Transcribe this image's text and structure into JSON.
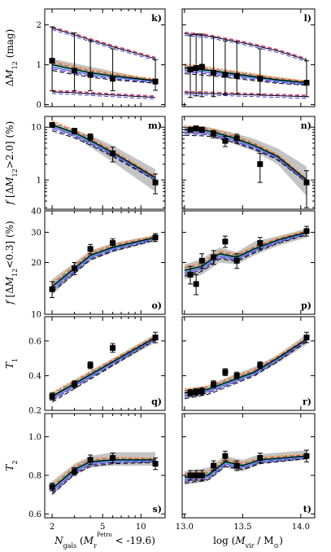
{
  "figure": {
    "xlabel_left_parts": [
      "N",
      "gals",
      " (",
      "M",
      "r",
      "Petro",
      " < -19.6)"
    ],
    "xlabel_right_parts": [
      "log (",
      "M",
      "vir",
      " / M",
      "⊙",
      ")"
    ],
    "x_left": {
      "scale": "log",
      "lim": [
        1.75,
        15.5
      ],
      "ticks": [
        2,
        5,
        10
      ],
      "tick_labels": [
        "2",
        "5",
        "10"
      ],
      "minor": [
        3,
        4,
        6,
        7,
        8,
        9
      ]
    },
    "x_right": {
      "scale": "linear",
      "lim": [
        12.98,
        14.12
      ],
      "ticks": [
        13.0,
        13.5,
        14.0
      ],
      "tick_labels": [
        "13.0",
        "13.5",
        "14.0"
      ]
    },
    "colors": {
      "data": "#000000",
      "band": "#c4c4c4",
      "blue": "#2a2ae0",
      "purple": "#9933cc",
      "red": "#e03a2a",
      "orange": "#f08a1a",
      "cyan": "#1fb8e0",
      "green": "#1ca36a"
    }
  },
  "chart_data": [
    {
      "row": "k-l",
      "type": "line",
      "ylabel_parts": [
        "Δ",
        "M",
        "12",
        " (mag)"
      ],
      "yscale": "linear",
      "ylim": [
        -0.05,
        2.4
      ],
      "yticks": [
        0,
        1,
        2
      ],
      "ytick_labels": [
        "0",
        "1",
        "2"
      ],
      "panels": [
        {
          "label": "k)",
          "side": "left",
          "points": {
            "x": [
              2,
              3,
              4,
              6,
              13
            ],
            "y": [
              1.1,
              0.85,
              0.75,
              0.65,
              0.58
            ],
            "yerr": [
              [
                0.75,
                0.5,
                0.4,
                0.3,
                0.22
              ],
              [
                0.85,
                0.95,
                0.85,
                0.75,
                0.55
              ]
            ]
          },
          "band": {
            "x": [
              2,
              13
            ],
            "lo": [
              1.0,
              0.55
            ],
            "hi": [
              1.15,
              0.62
            ]
          },
          "model": {
            "x": [
              2,
              3,
              4,
              6,
              13
            ],
            "y": [
              1.0,
              0.88,
              0.8,
              0.72,
              0.6
            ]
          },
          "scatter_lo": {
            "x": [
              2,
              3,
              4,
              6,
              13
            ],
            "y": [
              0.32,
              0.3,
              0.27,
              0.24,
              0.18
            ]
          },
          "scatter_hi": {
            "x": [
              2,
              3,
              4,
              6,
              13
            ],
            "y": [
              1.92,
              1.75,
              1.62,
              1.45,
              1.15
            ]
          }
        },
        {
          "label": "l)",
          "side": "right",
          "points": {
            "x": [
              13.05,
              13.1,
              13.15,
              13.25,
              13.35,
              13.45,
              13.65,
              14.05
            ],
            "y": [
              0.88,
              0.92,
              0.95,
              0.8,
              0.75,
              0.72,
              0.65,
              0.55
            ],
            "yerr": [
              [
                0.7,
                0.7,
                0.75,
                0.6,
                0.5,
                0.45,
                0.4,
                0.35
              ],
              [
                0.85,
                0.85,
                0.82,
                0.9,
                0.85,
                0.85,
                0.75,
                0.55
              ]
            ]
          },
          "band": {
            "x": [
              13.0,
              14.05
            ],
            "lo": [
              0.85,
              0.55
            ],
            "hi": [
              1.0,
              0.6
            ]
          },
          "model": {
            "x": [
              13.0,
              13.2,
              13.4,
              13.6,
              13.8,
              14.05
            ],
            "y": [
              0.92,
              0.86,
              0.78,
              0.7,
              0.62,
              0.55
            ]
          },
          "scatter_lo": {
            "x": [
              13.0,
              14.05
            ],
            "y": [
              0.3,
              0.2
            ]
          },
          "scatter_hi": {
            "x": [
              13.0,
              13.2,
              13.5,
              13.8,
              14.05
            ],
            "y": [
              1.78,
              1.72,
              1.55,
              1.35,
              1.12
            ]
          }
        }
      ]
    },
    {
      "row": "m-n",
      "type": "line",
      "ylabel_parts": [
        "f",
        " [Δ",
        "M",
        "12",
        ">2.0]  (%)"
      ],
      "yscale": "log",
      "ylim": [
        0.28,
        16
      ],
      "yticks": [
        1,
        10
      ],
      "ytick_labels": [
        "1",
        "10"
      ],
      "panels": [
        {
          "label": "m)",
          "side": "left",
          "points": {
            "x": [
              2,
              3,
              4,
              6,
              13
            ],
            "y": [
              11,
              8.5,
              6.5,
              3.2,
              0.9
            ],
            "yerr": [
              [
                1.0,
                1.0,
                1.0,
                1.0,
                0.35
              ],
              [
                1.0,
                1.0,
                1.0,
                1.0,
                0.4
              ]
            ]
          },
          "band": {
            "x": [
              2,
              3,
              4,
              6,
              13
            ],
            "lo": [
              10,
              6.5,
              4.2,
              2.2,
              0.6
            ],
            "hi": [
              12.5,
              9,
              7,
              4.5,
              1.6
            ]
          },
          "model": {
            "x": [
              2,
              3,
              4,
              6,
              13
            ],
            "y": [
              11,
              7.8,
              5.6,
              3.3,
              1.1
            ]
          }
        },
        {
          "label": "n)",
          "side": "right",
          "points": {
            "x": [
              13.05,
              13.1,
              13.15,
              13.25,
              13.35,
              13.45,
              13.65,
              14.05
            ],
            "y": [
              9,
              9.5,
              9,
              7.5,
              5.5,
              6.2,
              2.0,
              0.9
            ],
            "yerr": [
              [
                1.0,
                1.0,
                1.0,
                1.2,
                1.2,
                1.2,
                1.1,
                0.6
              ],
              [
                1.0,
                1.0,
                1.0,
                1.2,
                1.2,
                1.2,
                1.2,
                0.6
              ]
            ]
          },
          "band": {
            "x": [
              13.0,
              13.2,
              13.4,
              13.6,
              13.8,
              14.05
            ],
            "lo": [
              7.5,
              7,
              5,
              3.5,
              2,
              0.5
            ],
            "hi": [
              10,
              10,
              8,
              6,
              4,
              1.8
            ]
          },
          "model": {
            "x": [
              13.0,
              13.2,
              13.4,
              13.6,
              13.8,
              14.05
            ],
            "y": [
              9,
              8.5,
              6.5,
              4.5,
              2.8,
              1.0
            ]
          }
        }
      ]
    },
    {
      "row": "o-p",
      "type": "line",
      "ylabel_parts": [
        "f",
        " [Δ",
        "M",
        "12",
        "<0.3]  (%)"
      ],
      "yscale": "log",
      "ylim": [
        10,
        40
      ],
      "yticks": [
        10,
        20,
        30,
        40
      ],
      "ytick_labels": [
        "10",
        "20",
        "30",
        "40"
      ],
      "panels": [
        {
          "label": "o)",
          "side": "left",
          "points": {
            "x": [
              2,
              3,
              4,
              6,
              13
            ],
            "y": [
              14,
              18.5,
              24,
              26,
              28
            ],
            "yerr": [
              [
                1.5,
                1.5,
                1.5,
                1.5,
                1.5
              ],
              [
                1.5,
                1.5,
                1.5,
                1.5,
                1.5
              ]
            ]
          },
          "band": {
            "x": [
              2,
              3,
              4,
              6,
              13
            ],
            "lo": [
              13,
              17,
              20.5,
              23,
              26.5
            ],
            "hi": [
              16,
              20,
              23.5,
              26,
              29
            ]
          },
          "model": {
            "x": [
              2,
              3,
              4,
              6,
              13
            ],
            "y": [
              14.5,
              18.5,
              22,
              24.5,
              28
            ]
          }
        },
        {
          "label": "p)",
          "side": "right",
          "points": {
            "x": [
              13.05,
              13.1,
              13.15,
              13.25,
              13.35,
              13.45,
              13.65,
              14.05
            ],
            "y": [
              17,
              15,
              20.5,
              21.5,
              26.5,
              20.5,
              26,
              30.5
            ],
            "yerr": [
              [
                2,
                2,
                2,
                2,
                2,
                2,
                2,
                2
              ],
              [
                2,
                2,
                2,
                2,
                2,
                2,
                2,
                2
              ]
            ]
          },
          "band": {
            "x": [
              13.0,
              13.15,
              13.3,
              13.45,
              13.6,
              13.8,
              14.05
            ],
            "lo": [
              16,
              17,
              20,
              19.5,
              22,
              25,
              28
            ],
            "hi": [
              19.5,
              21,
              24.5,
              23,
              26.5,
              28.5,
              31.5
            ]
          },
          "model": {
            "x": [
              13.0,
              13.15,
              13.3,
              13.45,
              13.6,
              13.8,
              14.05
            ],
            "y": [
              18,
              19,
              22.5,
              21.5,
              24,
              27,
              30
            ]
          }
        }
      ]
    },
    {
      "row": "q-r",
      "type": "line",
      "ylabel_parts": [
        "T",
        "1"
      ],
      "yscale": "linear",
      "ylim": [
        0.2,
        0.74
      ],
      "yticks": [
        0.2,
        0.4,
        0.6
      ],
      "ytick_labels": [
        "0.2",
        "0.4",
        "0.6"
      ],
      "panels": [
        {
          "label": "q)",
          "side": "left",
          "points": {
            "x": [
              2,
              3,
              4,
              6,
              13
            ],
            "y": [
              0.28,
              0.35,
              0.46,
              0.56,
              0.62
            ],
            "yerr": [
              [
                0.02,
                0.02,
                0.02,
                0.025,
                0.03
              ],
              [
                0.02,
                0.02,
                0.02,
                0.025,
                0.03
              ]
            ]
          },
          "band": {
            "x": [
              2,
              13
            ],
            "lo": [
              0.26,
              0.59
            ],
            "hi": [
              0.3,
              0.64
            ]
          },
          "model": {
            "x": [
              2,
              13
            ],
            "y": [
              0.28,
              0.62
            ]
          }
        },
        {
          "label": "r)",
          "side": "right",
          "points": {
            "x": [
              13.05,
              13.1,
              13.15,
              13.25,
              13.35,
              13.45,
              13.65,
              14.05
            ],
            "y": [
              0.3,
              0.305,
              0.31,
              0.35,
              0.42,
              0.4,
              0.46,
              0.62
            ],
            "yerr": [
              [
                0.02,
                0.02,
                0.02,
                0.02,
                0.02,
                0.02,
                0.02,
                0.03
              ],
              [
                0.02,
                0.02,
                0.02,
                0.02,
                0.02,
                0.02,
                0.02,
                0.03
              ]
            ]
          },
          "band": {
            "x": [
              13.0,
              13.2,
              13.4,
              13.6,
              13.8,
              14.05
            ],
            "lo": [
              0.28,
              0.3,
              0.35,
              0.4,
              0.47,
              0.58
            ],
            "hi": [
              0.32,
              0.34,
              0.4,
              0.45,
              0.52,
              0.64
            ]
          },
          "model": {
            "x": [
              13.0,
              13.2,
              13.4,
              13.6,
              13.8,
              14.05
            ],
            "y": [
              0.3,
              0.32,
              0.37,
              0.42,
              0.5,
              0.61
            ]
          }
        }
      ]
    },
    {
      "row": "s-t",
      "type": "line",
      "ylabel_parts": [
        "T",
        "2"
      ],
      "yscale": "linear",
      "ylim": [
        0.58,
        1.12
      ],
      "yticks": [
        0.6,
        0.8,
        1.0
      ],
      "ytick_labels": [
        "0.6",
        "0.8",
        "1.0"
      ],
      "panels": [
        {
          "label": "s)",
          "side": "left",
          "points": {
            "x": [
              2,
              3,
              4,
              6,
              13
            ],
            "y": [
              0.74,
              0.82,
              0.88,
              0.89,
              0.86
            ],
            "yerr": [
              [
                0.02,
                0.02,
                0.025,
                0.025,
                0.03
              ],
              [
                0.02,
                0.02,
                0.025,
                0.025,
                0.03
              ]
            ]
          },
          "band": {
            "x": [
              2,
              3,
              4,
              6,
              13
            ],
            "lo": [
              0.7,
              0.8,
              0.84,
              0.85,
              0.85
            ],
            "hi": [
              0.77,
              0.86,
              0.9,
              0.92,
              0.92
            ]
          },
          "model": {
            "x": [
              2,
              3,
              4,
              6,
              13
            ],
            "y": [
              0.73,
              0.83,
              0.87,
              0.88,
              0.88
            ]
          }
        },
        {
          "label": "t)",
          "side": "right",
          "points": {
            "x": [
              13.05,
              13.1,
              13.15,
              13.25,
              13.35,
              13.45,
              13.65,
              14.05
            ],
            "y": [
              0.8,
              0.8,
              0.8,
              0.85,
              0.9,
              0.85,
              0.89,
              0.9
            ],
            "yerr": [
              [
                0.025,
                0.025,
                0.025,
                0.025,
                0.025,
                0.025,
                0.025,
                0.03
              ],
              [
                0.025,
                0.025,
                0.025,
                0.025,
                0.025,
                0.025,
                0.025,
                0.03
              ]
            ]
          },
          "band": {
            "x": [
              13.0,
              13.2,
              13.35,
              13.5,
              13.65,
              13.85,
              14.05
            ],
            "lo": [
              0.75,
              0.77,
              0.84,
              0.82,
              0.86,
              0.87,
              0.88
            ],
            "hi": [
              0.82,
              0.84,
              0.9,
              0.88,
              0.91,
              0.92,
              0.93
            ]
          },
          "model": {
            "x": [
              13.0,
              13.2,
              13.35,
              13.5,
              13.65,
              13.85,
              14.05
            ],
            "y": [
              0.79,
              0.8,
              0.87,
              0.85,
              0.88,
              0.89,
              0.9
            ]
          }
        }
      ]
    }
  ]
}
